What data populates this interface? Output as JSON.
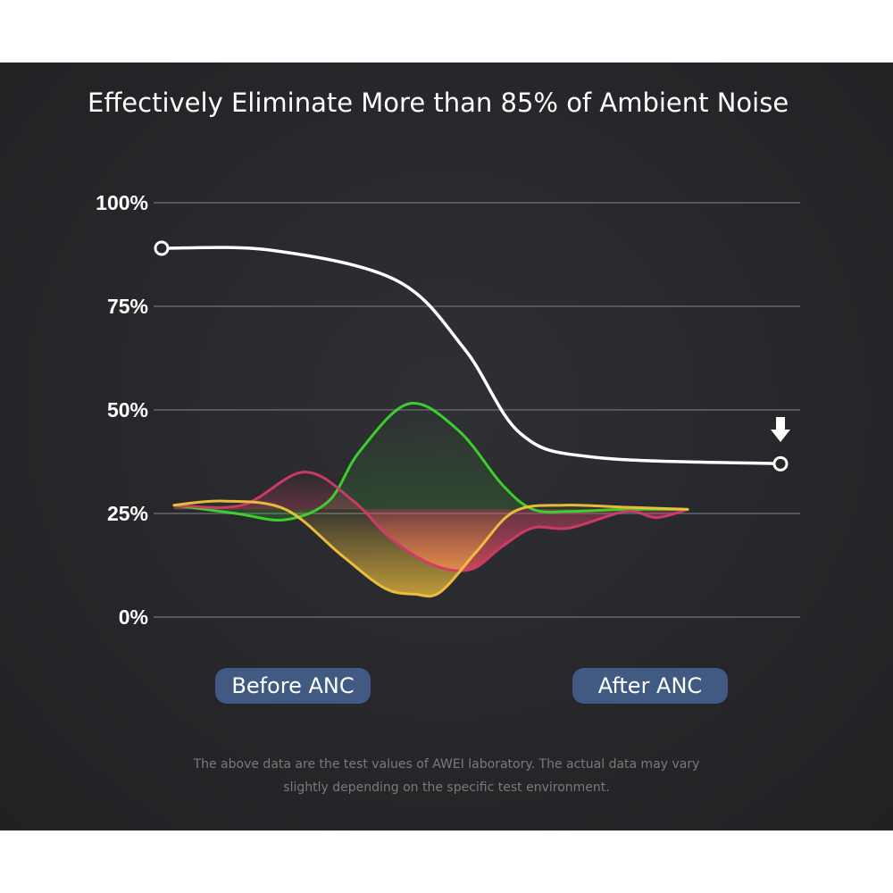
{
  "chart_data": {
    "type": "line",
    "title": "Effectively Eliminate More than 85% of Ambient Noise",
    "ylim": [
      0,
      100
    ],
    "y_ticks": [
      "0%",
      "25%",
      "50%",
      "75%",
      "100%"
    ],
    "y_tick_values": [
      0,
      25,
      50,
      75,
      100
    ],
    "grid": true,
    "x": [
      0,
      1
    ],
    "categories": [
      "Before ANC",
      "After ANC"
    ],
    "series": [
      {
        "color": "#ffffff",
        "values": [
          89,
          37
        ],
        "markers": "endpoints"
      }
    ],
    "decorative_waves": [
      {
        "color": "#3dd62e",
        "points": [
          [
            0.02,
            27
          ],
          [
            0.12,
            25
          ],
          [
            0.2,
            23.5
          ],
          [
            0.27,
            28
          ],
          [
            0.32,
            40
          ],
          [
            0.4,
            51.5
          ],
          [
            0.48,
            45
          ],
          [
            0.55,
            32
          ],
          [
            0.6,
            26
          ],
          [
            0.66,
            25.5
          ],
          [
            0.75,
            26
          ],
          [
            0.85,
            26
          ]
        ]
      },
      {
        "color": "#d23a6a",
        "points": [
          [
            0.02,
            27
          ],
          [
            0.13,
            27
          ],
          [
            0.23,
            35
          ],
          [
            0.31,
            28
          ],
          [
            0.37,
            19
          ],
          [
            0.44,
            12.5
          ],
          [
            0.5,
            11.5
          ],
          [
            0.55,
            17
          ],
          [
            0.6,
            21.5
          ],
          [
            0.66,
            21.5
          ],
          [
            0.75,
            25.5
          ],
          [
            0.8,
            24
          ],
          [
            0.85,
            26
          ]
        ]
      },
      {
        "color": "#f2c23d",
        "points": [
          [
            0.02,
            27
          ],
          [
            0.1,
            28
          ],
          [
            0.2,
            26
          ],
          [
            0.29,
            15
          ],
          [
            0.36,
            7
          ],
          [
            0.41,
            5.5
          ],
          [
            0.45,
            6
          ],
          [
            0.51,
            16
          ],
          [
            0.57,
            25.5
          ],
          [
            0.65,
            27
          ],
          [
            0.75,
            26.5
          ],
          [
            0.85,
            26
          ]
        ]
      }
    ],
    "indicator": "down-arrow"
  },
  "labels": {
    "before": "Before ANC",
    "after": "After ANC"
  },
  "footnote": {
    "line1": "The above data are the test values of AWEI laboratory. The actual data may vary",
    "line2": "slightly depending on the specific test environment."
  },
  "colors": {
    "background": "#26272a",
    "pill": "#415a82",
    "grid": "#55575b",
    "main_line": "#ffffff",
    "green": "#3dd62e",
    "red": "#d23a6a",
    "yellow": "#f2c23d"
  }
}
